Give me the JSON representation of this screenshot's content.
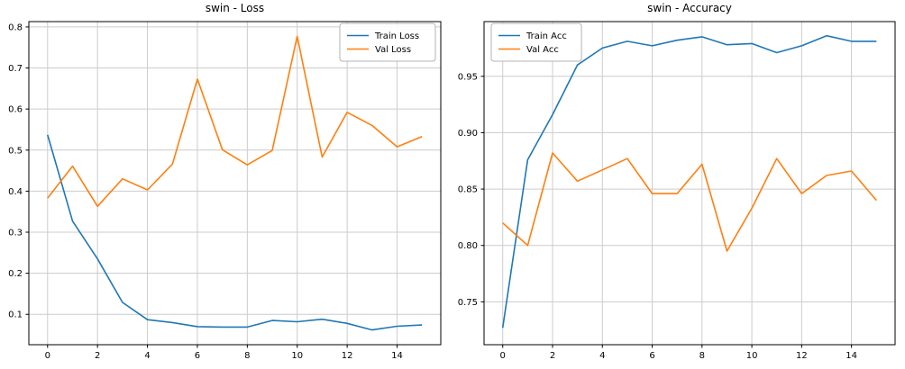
{
  "figure": {
    "background": "#ffffff",
    "grid_color": "#cccccc",
    "spine_color": "#000000",
    "text_color": "#000000",
    "legend_border_color": "#b3b3b3"
  },
  "chart_data": [
    {
      "type": "line",
      "title": "swin - Loss",
      "xlabel": "",
      "ylabel": "",
      "x": [
        0,
        1,
        2,
        3,
        4,
        5,
        6,
        7,
        8,
        9,
        10,
        11,
        12,
        13,
        14,
        15
      ],
      "series": [
        {
          "name": "Train Loss",
          "color": "#1f77b4",
          "values": [
            0.537,
            0.327,
            0.235,
            0.129,
            0.087,
            0.08,
            0.07,
            0.069,
            0.069,
            0.085,
            0.082,
            0.088,
            0.078,
            0.062,
            0.071,
            0.074
          ]
        },
        {
          "name": "Val Loss",
          "color": "#ff7f0e",
          "values": [
            0.383,
            0.461,
            0.363,
            0.43,
            0.403,
            0.466,
            0.673,
            0.501,
            0.464,
            0.499,
            0.777,
            0.483,
            0.592,
            0.56,
            0.508,
            0.533
          ]
        }
      ],
      "xlim": [
        -0.75,
        15.75
      ],
      "ylim": [
        0.026,
        0.813
      ],
      "xticks": [
        0,
        2,
        4,
        6,
        8,
        10,
        12,
        14
      ],
      "xtick_labels": [
        "0",
        "2",
        "4",
        "6",
        "8",
        "10",
        "12",
        "14"
      ],
      "yticks": [
        0.1,
        0.2,
        0.3,
        0.4,
        0.5,
        0.6,
        0.7,
        0.8
      ],
      "ytick_labels": [
        "0.1",
        "0.2",
        "0.3",
        "0.4",
        "0.5",
        "0.6",
        "0.7",
        "0.8"
      ],
      "grid": true,
      "legend_position": "upper-right"
    },
    {
      "type": "line",
      "title": "swin - Accuracy",
      "xlabel": "",
      "ylabel": "",
      "x": [
        0,
        1,
        2,
        3,
        4,
        5,
        6,
        7,
        8,
        9,
        10,
        11,
        12,
        13,
        14,
        15
      ],
      "series": [
        {
          "name": "Train Acc",
          "color": "#1f77b4",
          "values": [
            0.727,
            0.876,
            0.916,
            0.96,
            0.975,
            0.981,
            0.977,
            0.982,
            0.985,
            0.978,
            0.979,
            0.971,
            0.977,
            0.986,
            0.981,
            0.981
          ]
        },
        {
          "name": "Val Acc",
          "color": "#ff7f0e",
          "values": [
            0.82,
            0.8,
            0.882,
            0.857,
            0.867,
            0.877,
            0.846,
            0.846,
            0.872,
            0.795,
            0.833,
            0.877,
            0.846,
            0.862,
            0.866,
            0.84
          ]
        }
      ],
      "xlim": [
        -0.75,
        15.75
      ],
      "ylim": [
        0.712,
        0.9985
      ],
      "xticks": [
        0,
        2,
        4,
        6,
        8,
        10,
        12,
        14
      ],
      "xtick_labels": [
        "0",
        "2",
        "4",
        "6",
        "8",
        "10",
        "12",
        "14"
      ],
      "yticks": [
        0.75,
        0.8,
        0.85,
        0.9,
        0.95
      ],
      "ytick_labels": [
        "0.75",
        "0.80",
        "0.85",
        "0.90",
        "0.95"
      ],
      "grid": true,
      "legend_position": "upper-left"
    }
  ]
}
